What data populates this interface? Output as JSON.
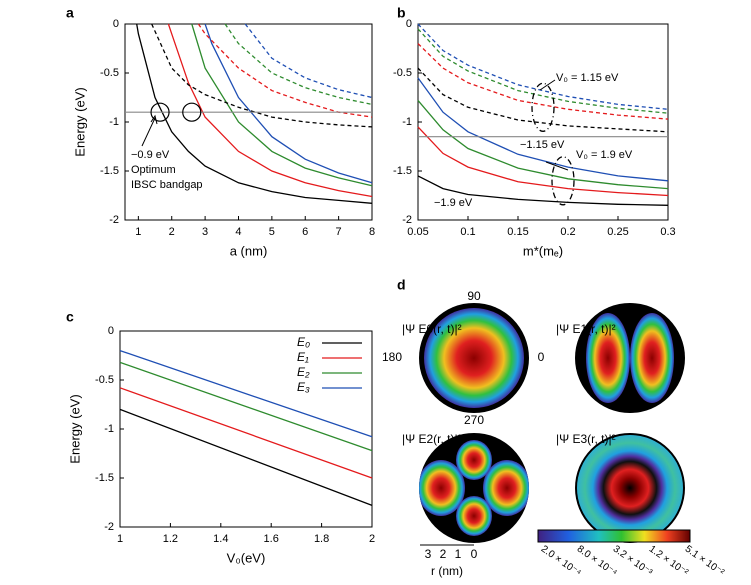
{
  "chart_data": [
    {
      "panel": "a",
      "type": "line",
      "xlabel": "a (nm)",
      "ylabel": "Energy (eV)",
      "xlim": [
        0.6,
        8
      ],
      "ylim": [
        -2,
        0
      ],
      "xticks": [
        1,
        2,
        3,
        4,
        5,
        6,
        7,
        8
      ],
      "yticks": [
        0,
        -0.5,
        -1,
        -1.5,
        -2
      ],
      "series": [
        {
          "color": "#000000",
          "dash": false,
          "x": [
            0.95,
            1,
            1.5,
            2,
            2.5,
            3,
            4,
            5,
            6,
            7,
            8
          ],
          "values": [
            0,
            -0.1,
            -0.75,
            -1.1,
            -1.3,
            -1.45,
            -1.62,
            -1.71,
            -1.77,
            -1.8,
            -1.83
          ]
        },
        {
          "color": "#e41a1c",
          "dash": false,
          "x": [
            1.9,
            2,
            2.5,
            3,
            4,
            5,
            6,
            7,
            8
          ],
          "values": [
            0,
            -0.1,
            -0.6,
            -0.95,
            -1.3,
            -1.5,
            -1.62,
            -1.7,
            -1.76
          ]
        },
        {
          "color": "#2e8b2e",
          "dash": false,
          "x": [
            2.6,
            3,
            4,
            5,
            6,
            7,
            8
          ],
          "values": [
            0,
            -0.45,
            -1.0,
            -1.3,
            -1.47,
            -1.57,
            -1.65
          ]
        },
        {
          "color": "#1f4fb4",
          "dash": false,
          "x": [
            3.0,
            3.2,
            4,
            5,
            6,
            7,
            8
          ],
          "values": [
            0,
            -0.2,
            -0.75,
            -1.15,
            -1.38,
            -1.52,
            -1.62
          ]
        },
        {
          "color": "#000000",
          "dash": true,
          "x": [
            1.4,
            2,
            2.5,
            3,
            4,
            5,
            6,
            7,
            8
          ],
          "values": [
            0,
            -0.45,
            -0.62,
            -0.72,
            -0.85,
            -0.95,
            -1.0,
            -1.03,
            -1.05
          ]
        },
        {
          "color": "#e41a1c",
          "dash": true,
          "x": [
            2.8,
            3,
            4,
            5,
            6,
            7,
            8
          ],
          "values": [
            0,
            -0.1,
            -0.45,
            -0.68,
            -0.8,
            -0.9,
            -0.95
          ]
        },
        {
          "color": "#2e8b2e",
          "dash": true,
          "x": [
            3.6,
            4,
            5,
            6,
            7,
            8
          ],
          "values": [
            0,
            -0.2,
            -0.5,
            -0.65,
            -0.75,
            -0.82
          ]
        },
        {
          "color": "#1f4fb4",
          "dash": true,
          "x": [
            4.2,
            5,
            6,
            7,
            8
          ],
          "values": [
            0,
            -0.35,
            -0.55,
            -0.67,
            -0.75
          ]
        }
      ],
      "hline": -0.9,
      "circles": [
        {
          "x": 1.65,
          "y": -0.9
        },
        {
          "x": 2.6,
          "y": -0.9
        }
      ],
      "annotations": [
        "−0.9 eV",
        "Optimum",
        "IBSC bandgap"
      ]
    },
    {
      "panel": "b",
      "type": "line",
      "xlabel": "m*(mₑ)",
      "ylabel": "",
      "xlim": [
        0.05,
        0.3
      ],
      "ylim": [
        -2,
        0
      ],
      "xticks": [
        0.05,
        0.1,
        0.15,
        0.2,
        0.25,
        0.3
      ],
      "yticks": [
        0,
        -0.5,
        -1,
        -1.5,
        -2
      ],
      "series": [
        {
          "color": "#1f4fb4",
          "dash": true,
          "x": [
            0.05,
            0.075,
            0.1,
            0.15,
            0.2,
            0.25,
            0.3
          ],
          "values": [
            0,
            -0.27,
            -0.42,
            -0.62,
            -0.74,
            -0.82,
            -0.87
          ]
        },
        {
          "color": "#2e8b2e",
          "dash": true,
          "x": [
            0.05,
            0.075,
            0.1,
            0.15,
            0.2,
            0.25,
            0.3
          ],
          "values": [
            -0.05,
            -0.33,
            -0.48,
            -0.68,
            -0.79,
            -0.86,
            -0.91
          ]
        },
        {
          "color": "#e41a1c",
          "dash": true,
          "x": [
            0.05,
            0.075,
            0.1,
            0.15,
            0.2,
            0.25,
            0.3
          ],
          "values": [
            -0.2,
            -0.45,
            -0.6,
            -0.78,
            -0.87,
            -0.93,
            -0.97
          ]
        },
        {
          "color": "#000000",
          "dash": true,
          "x": [
            0.05,
            0.075,
            0.1,
            0.15,
            0.2,
            0.25,
            0.3
          ],
          "values": [
            -0.45,
            -0.72,
            -0.85,
            -0.98,
            -1.04,
            -1.07,
            -1.1
          ]
        },
        {
          "color": "#1f4fb4",
          "dash": false,
          "x": [
            0.05,
            0.075,
            0.1,
            0.15,
            0.2,
            0.25,
            0.3
          ],
          "values": [
            -0.55,
            -0.9,
            -1.1,
            -1.33,
            -1.46,
            -1.55,
            -1.6
          ]
        },
        {
          "color": "#2e8b2e",
          "dash": false,
          "x": [
            0.05,
            0.075,
            0.1,
            0.15,
            0.2,
            0.25,
            0.3
          ],
          "values": [
            -0.78,
            -1.08,
            -1.27,
            -1.47,
            -1.58,
            -1.64,
            -1.68
          ]
        },
        {
          "color": "#e41a1c",
          "dash": false,
          "x": [
            0.05,
            0.075,
            0.1,
            0.15,
            0.2,
            0.25,
            0.3
          ],
          "values": [
            -1.05,
            -1.32,
            -1.46,
            -1.61,
            -1.68,
            -1.72,
            -1.75
          ]
        },
        {
          "color": "#000000",
          "dash": false,
          "x": [
            0.05,
            0.075,
            0.1,
            0.15,
            0.2,
            0.25,
            0.3
          ],
          "values": [
            -1.55,
            -1.68,
            -1.74,
            -1.79,
            -1.82,
            -1.84,
            -1.85
          ]
        }
      ],
      "hline": -1.15,
      "ellipses": [
        {
          "x": 0.175,
          "y": -0.85
        },
        {
          "x": 0.195,
          "y": -1.6
        }
      ],
      "annotations": [
        "V₀ = 1.15 eV",
        "−1.15 eV",
        "V₀ = 1.9 eV",
        "−1.9 eV"
      ]
    },
    {
      "panel": "c",
      "type": "line",
      "xlabel": "V₀(eV)",
      "ylabel": "Energy (eV)",
      "xlim": [
        1,
        2
      ],
      "ylim": [
        -2,
        0
      ],
      "xticks": [
        1,
        1.2,
        1.4,
        1.6,
        1.8,
        2
      ],
      "yticks": [
        0,
        -0.5,
        -1,
        -1.5,
        -2
      ],
      "legend": "upper right",
      "series": [
        {
          "name": "E₀",
          "color": "#000000",
          "dash": false,
          "x": [
            1,
            2
          ],
          "values": [
            -0.8,
            -1.78
          ]
        },
        {
          "name": "E₁",
          "color": "#e41a1c",
          "dash": false,
          "x": [
            1,
            2
          ],
          "values": [
            -0.58,
            -1.5
          ]
        },
        {
          "name": "E₂",
          "color": "#2e8b2e",
          "dash": false,
          "x": [
            1,
            2
          ],
          "values": [
            -0.32,
            -1.22
          ]
        },
        {
          "name": "E₃",
          "color": "#1f4fb4",
          "dash": false,
          "x": [
            1,
            2
          ],
          "values": [
            -0.2,
            -1.08
          ]
        }
      ]
    }
  ],
  "panel_d": {
    "panel": "d",
    "wave_labels": [
      "|Ψ E0(r, t)|²",
      "|Ψ E1(r, t)|²",
      "|Ψ E2(r, t)|²",
      "|Ψ E3(r, t)|²"
    ],
    "angle_labels": [
      "90",
      "180",
      "0",
      "270"
    ],
    "r_ticks": [
      "3",
      "2",
      "1",
      "0"
    ],
    "r_label": "r (nm)",
    "colorbar_labels": [
      "2.0 × 10⁻⁴",
      "8.0 × 10⁻⁴",
      "3.2 × 10⁻³",
      "1.2 × 10⁻²",
      "5.1 × 10⁻²"
    ]
  }
}
